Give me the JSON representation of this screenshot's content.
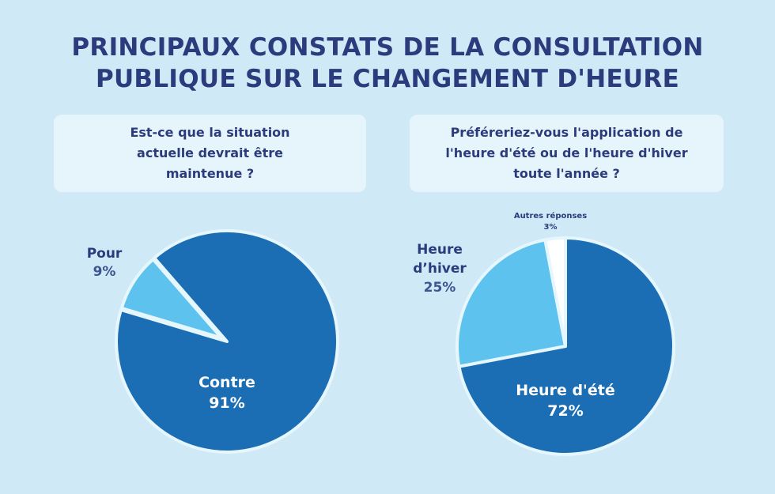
{
  "title": [
    "PRINCIPAUX CONSTATS DE LA CONSULTATION",
    "PUBLIQUE SUR LE CHANGEMENT D'HEURE"
  ],
  "colors": {
    "background": "#cfe9f7",
    "title": "#2b3b7c",
    "dark_blue": "#1b6db4",
    "light_blue": "#5dc3ee",
    "white": "#ffffff"
  },
  "chart_data": [
    {
      "type": "pie",
      "title": "Est-ce que la situation actuelle devrait être maintenue ?",
      "categories": [
        "Contre",
        "Pour"
      ],
      "values": [
        91,
        9
      ],
      "labels": [
        "91%",
        "9%"
      ],
      "colors": [
        "#1b6db4",
        "#5dc3ee"
      ],
      "exploded": "Pour"
    },
    {
      "type": "pie",
      "title": "Préféreriez-vous l'application de l'heure d'été ou de l'heure d'hiver toute l'année ?",
      "categories": [
        "Heure d'été",
        "Heure d'hiver",
        "Autres réponses"
      ],
      "values": [
        72,
        25,
        3
      ],
      "labels": [
        "72%",
        "25%",
        "3%"
      ],
      "colors": [
        "#1b6db4",
        "#5dc3ee",
        "#ffffff"
      ]
    }
  ]
}
